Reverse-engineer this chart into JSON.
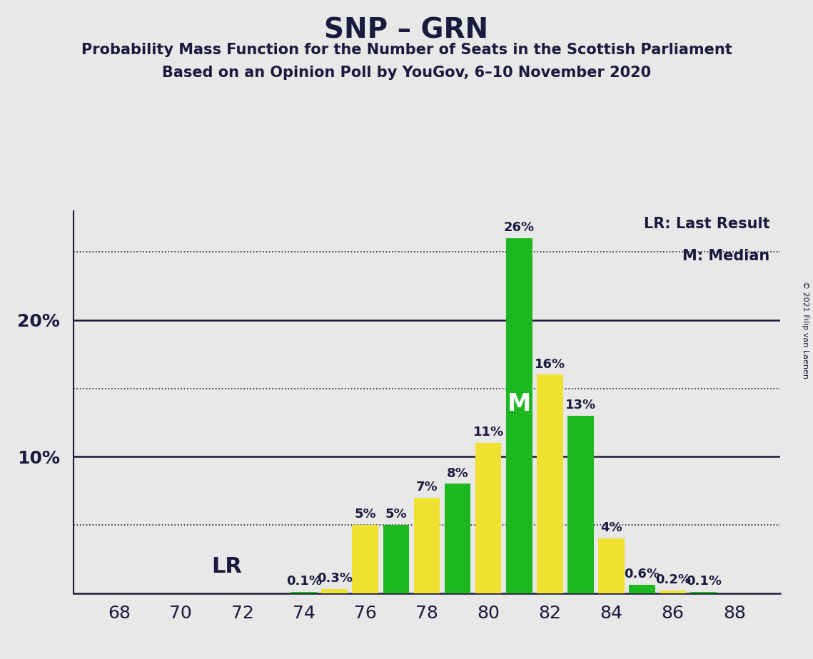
{
  "title": "SNP – GRN",
  "subtitle1": "Probability Mass Function for the Number of Seats in the Scottish Parliament",
  "subtitle2": "Based on an Opinion Poll by YouGov, 6–10 November 2020",
  "copyright": "© 2021 Filip van Laenen",
  "seats": [
    68,
    69,
    70,
    71,
    72,
    73,
    74,
    75,
    76,
    77,
    78,
    79,
    80,
    81,
    82,
    83,
    84,
    85,
    86,
    87,
    88
  ],
  "probabilities": [
    0.0,
    0.0,
    0.0,
    0.0,
    0.0,
    0.0,
    0.1,
    0.3,
    5.0,
    5.0,
    7.0,
    8.0,
    11.0,
    26.0,
    16.0,
    13.0,
    4.0,
    0.6,
    0.2,
    0.1,
    0.0
  ],
  "colors": [
    "#f0e030",
    "#1db820",
    "#f0e030",
    "#1db820",
    "#f0e030",
    "#1db820",
    "#1db820",
    "#f0e030",
    "#f0e030",
    "#1db820",
    "#f0e030",
    "#1db820",
    "#f0e030",
    "#1db820",
    "#f0e030",
    "#1db820",
    "#f0e030",
    "#1db820",
    "#f0e030",
    "#1db820",
    "#f0e030"
  ],
  "lr_seat": 74,
  "median_seat": 81,
  "background_color": "#e8e8e8",
  "plot_bg": "#e8e8e8",
  "ylim_max": 28,
  "solid_lines": [
    10,
    20
  ],
  "dotted_lines": [
    5,
    15,
    25
  ],
  "bar_width": 0.85,
  "legend_lr": "LR: Last Result",
  "legend_m": "M: Median",
  "bar_label_fontsize": 13,
  "title_fontsize": 28,
  "subtitle_fontsize": 15,
  "axis_tick_fontsize": 18,
  "lr_fontsize": 22,
  "m_fontsize": 24,
  "legend_fontsize": 15,
  "copyright_fontsize": 8,
  "ytick_labels": [
    "10%",
    "20%"
  ],
  "ytick_vals": [
    10,
    20
  ],
  "dark_color": "#1a1a3e"
}
